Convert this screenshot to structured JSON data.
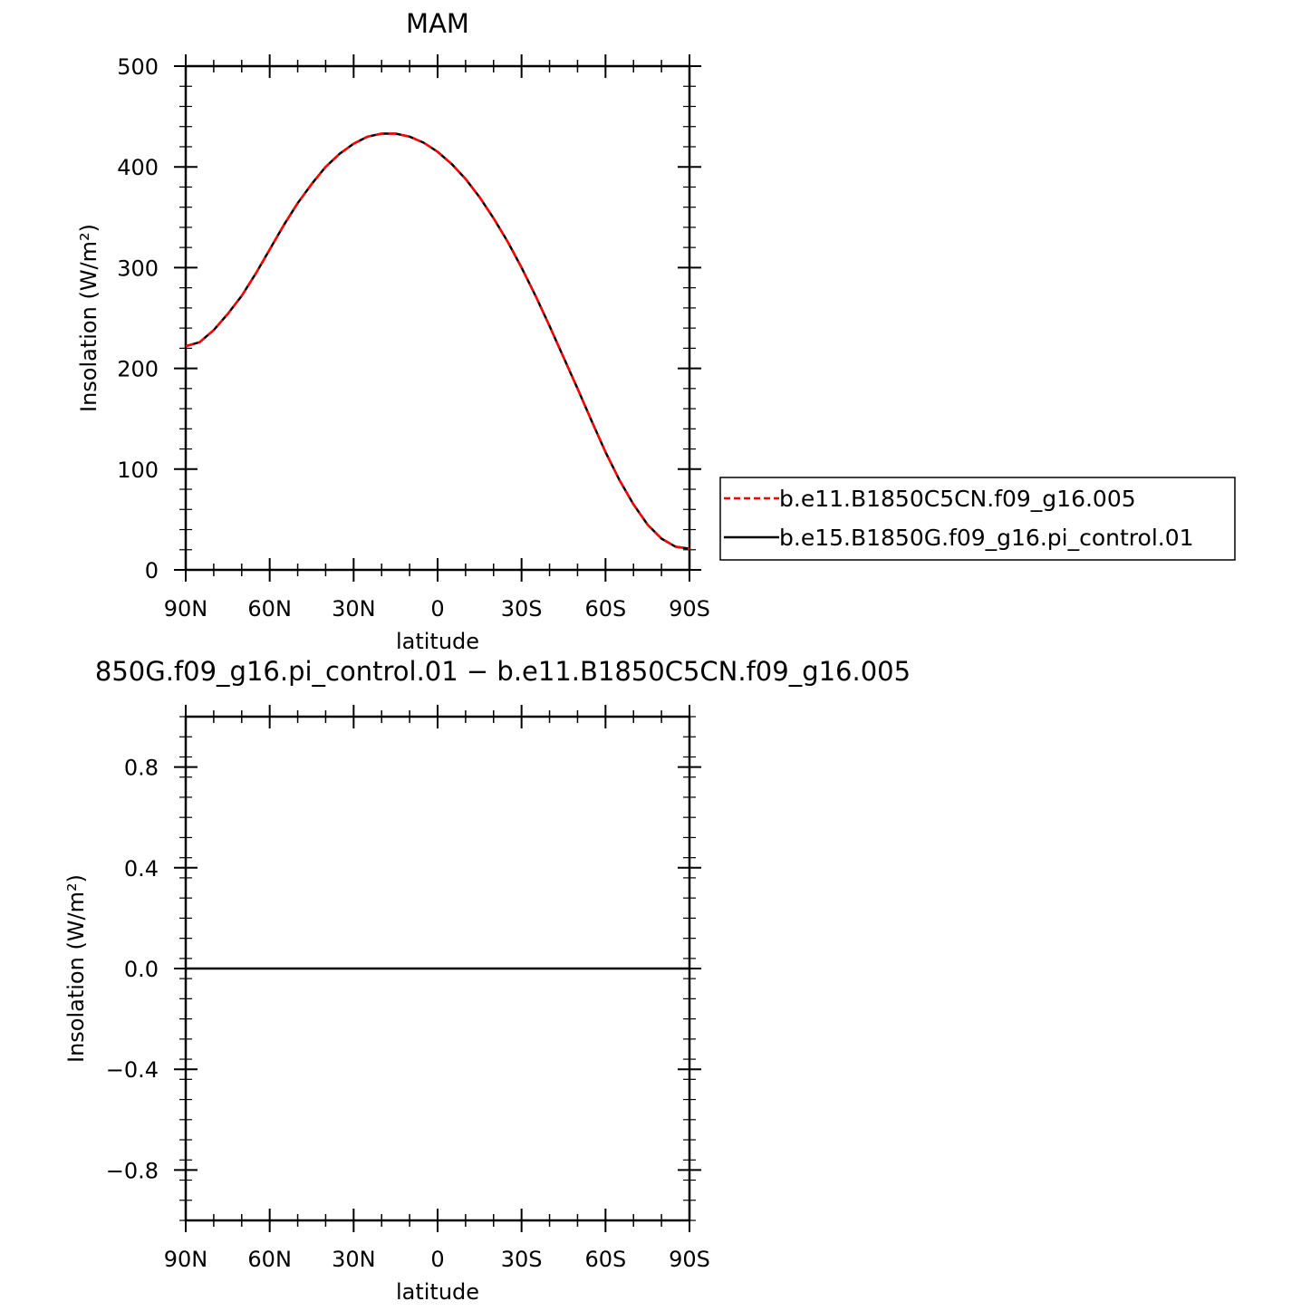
{
  "chart_data": [
    {
      "type": "line",
      "title": "MAM",
      "xlabel": "latitude",
      "ylabel": "Insolation (W/m²)",
      "xlim": [
        90,
        -90
      ],
      "ylim": [
        0,
        500
      ],
      "x_tick_values": [
        90,
        60,
        30,
        0,
        -30,
        -60,
        -90
      ],
      "x_tick_labels": [
        "90N",
        "60N",
        "30N",
        "0",
        "30S",
        "60S",
        "90S"
      ],
      "y_tick_values": [
        0,
        100,
        200,
        300,
        400,
        500
      ],
      "y_tick_labels": [
        "0",
        "100",
        "200",
        "300",
        "400",
        "500"
      ],
      "grid": false,
      "legend_position": "right",
      "x": [
        90,
        85,
        80,
        75,
        70,
        65,
        60,
        55,
        50,
        45,
        40,
        35,
        30,
        25,
        20,
        15,
        10,
        5,
        0,
        -5,
        -10,
        -15,
        -20,
        -25,
        -30,
        -35,
        -40,
        -45,
        -50,
        -55,
        -60,
        -65,
        -70,
        -75,
        -80,
        -85,
        -90
      ],
      "series": [
        {
          "name": "b.e11.B1850C5CN.f09_g16.005",
          "color": "#ff0000",
          "dash": "dashed",
          "values": [
            222,
            226,
            238,
            254,
            272,
            294,
            318,
            342,
            364,
            383,
            400,
            413,
            423,
            430,
            433,
            433,
            430,
            424,
            415,
            403,
            388,
            370,
            349,
            326,
            300,
            272,
            242,
            211,
            180,
            148,
            117,
            89,
            65,
            45,
            31,
            23,
            21
          ]
        },
        {
          "name": "b.e15.B1850G.f09_g16.pi_control.01",
          "color": "#000000",
          "dash": "solid",
          "values": [
            222,
            226,
            238,
            254,
            272,
            294,
            318,
            342,
            364,
            383,
            400,
            413,
            423,
            430,
            433,
            433,
            430,
            424,
            415,
            403,
            388,
            370,
            349,
            326,
            300,
            272,
            242,
            211,
            180,
            148,
            117,
            89,
            65,
            45,
            31,
            23,
            21
          ]
        }
      ]
    },
    {
      "type": "line",
      "title": "850G.f09_g16.pi_control.01 − b.e11.B1850C5CN.f09_g16.005",
      "xlabel": "latitude",
      "ylabel": "Insolation (W/m²)",
      "xlim": [
        90,
        -90
      ],
      "ylim": [
        -1,
        1
      ],
      "x_tick_values": [
        90,
        60,
        30,
        0,
        -30,
        -60,
        -90
      ],
      "x_tick_labels": [
        "90N",
        "60N",
        "30N",
        "0",
        "30S",
        "60S",
        "90S"
      ],
      "y_tick_values": [
        0.8,
        0.4,
        0.0,
        -0.4,
        -0.8
      ],
      "y_tick_labels": [
        "0.8",
        "0.4",
        "0.0",
        "−0.4",
        "−0.8"
      ],
      "grid": false,
      "x": [
        90,
        -90
      ],
      "series": [
        {
          "color": "#000000",
          "dash": "solid",
          "values": [
            0,
            0
          ]
        }
      ]
    }
  ]
}
